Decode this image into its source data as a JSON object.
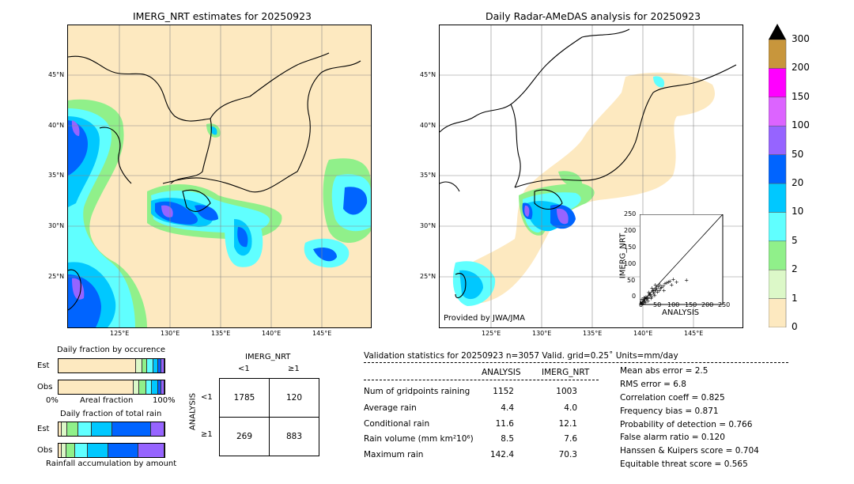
{
  "left_map": {
    "title": "IMERG_NRT estimates for 20250923",
    "lat_labels": [
      "45°N",
      "40°N",
      "35°N",
      "30°N",
      "25°N"
    ],
    "lon_labels": [
      "125°E",
      "130°E",
      "135°E",
      "140°E",
      "145°E"
    ]
  },
  "right_map": {
    "title": "Daily Radar-AMeDAS analysis for 20250923",
    "lat_labels": [
      "45°N",
      "40°N",
      "35°N",
      "30°N",
      "25°N"
    ],
    "lon_labels": [
      "125°E",
      "130°E",
      "135°E",
      "140°E",
      "145°E"
    ],
    "credit": "Provided by JWA/JMA"
  },
  "colorbar": {
    "levels": [
      "0",
      "1",
      "2",
      "5",
      "10",
      "20",
      "50",
      "100",
      "150",
      "200",
      "300"
    ],
    "colors": [
      "#fde9c0",
      "#dcf8c8",
      "#90f08a",
      "#60ffff",
      "#00c8ff",
      "#0064ff",
      "#9664ff",
      "#dc64ff",
      "#ff00ff",
      "#c8963c"
    ],
    "extend_color": "#000000"
  },
  "occurrence": {
    "title": "Daily fraction by occurence",
    "est_label": "Est",
    "obs_label": "Obs",
    "xlabel": "Areal fraction",
    "left_tick": "0%",
    "right_tick": "100%",
    "est_fractions": [
      0.76,
      0.06,
      0.04,
      0.05,
      0.04,
      0.03,
      0.02
    ],
    "obs_fractions": [
      0.74,
      0.05,
      0.06,
      0.05,
      0.05,
      0.03,
      0.02
    ]
  },
  "total_rain": {
    "title": "Daily fraction of total rain",
    "est_label": "Est",
    "obs_label": "Obs",
    "xlabel": "Rainfall accumulation by amount",
    "est_fractions": [
      0.02,
      0.05,
      0.1,
      0.13,
      0.2,
      0.37,
      0.13
    ],
    "obs_fractions": [
      0.02,
      0.04,
      0.08,
      0.12,
      0.2,
      0.29,
      0.25
    ]
  },
  "contingency": {
    "col_title": "IMERG_NRT",
    "col_lt": "<1",
    "col_ge": "≥1",
    "row_title": "ANALYSIS",
    "row_lt": "<1",
    "row_ge": "≥1",
    "a": "1785",
    "b": "120",
    "c": "269",
    "d": "883"
  },
  "validation": {
    "header": "Validation statistics for 20250923  n=3057 Valid. grid=0.25˚ Units=mm/day",
    "col_analysis": "ANALYSIS",
    "col_imerg": "IMERG_NRT",
    "rows": [
      {
        "label": "Num of gridpoints raining",
        "analysis": "1152",
        "imerg": "1003"
      },
      {
        "label": "Average rain",
        "analysis": "4.4",
        "imerg": "4.0"
      },
      {
        "label": "Conditional rain",
        "analysis": "11.6",
        "imerg": "12.1"
      },
      {
        "label": "Rain volume (mm km²10⁶)",
        "analysis": "8.5",
        "imerg": "7.6"
      },
      {
        "label": "Maximum rain",
        "analysis": "142.4",
        "imerg": "70.3"
      }
    ],
    "scores": [
      "Mean abs error =    2.5",
      "RMS error =    6.8",
      "Correlation coeff =  0.825",
      "Frequency bias =  0.871",
      "Probability of detection =  0.766",
      "False alarm ratio =  0.120",
      "Hanssen & Kuipers score =  0.704",
      "Equitable threat score =  0.565"
    ]
  },
  "chart_data": {
    "type": "scatter",
    "xlabel": "ANALYSIS",
    "ylabel": "IMERG_NRT",
    "xlim": [
      0,
      250
    ],
    "ylim": [
      0,
      250
    ],
    "ticks": [
      "0",
      "50",
      "100",
      "150",
      "200",
      "250"
    ],
    "points": [
      [
        2,
        1
      ],
      [
        5,
        3
      ],
      [
        8,
        6
      ],
      [
        10,
        12
      ],
      [
        12,
        8
      ],
      [
        15,
        10
      ],
      [
        18,
        22
      ],
      [
        20,
        14
      ],
      [
        22,
        18
      ],
      [
        25,
        20
      ],
      [
        28,
        30
      ],
      [
        30,
        25
      ],
      [
        32,
        28
      ],
      [
        35,
        22
      ],
      [
        38,
        40
      ],
      [
        40,
        35
      ],
      [
        42,
        30
      ],
      [
        45,
        38
      ],
      [
        48,
        42
      ],
      [
        50,
        45
      ],
      [
        55,
        50
      ],
      [
        58,
        40
      ],
      [
        60,
        55
      ],
      [
        65,
        48
      ],
      [
        70,
        52
      ],
      [
        75,
        58
      ],
      [
        80,
        60
      ],
      [
        85,
        62
      ],
      [
        90,
        65
      ],
      [
        100,
        70
      ],
      [
        110,
        62
      ],
      [
        140,
        68
      ],
      [
        6,
        15
      ],
      [
        12,
        20
      ],
      [
        16,
        5
      ],
      [
        24,
        10
      ],
      [
        33,
        18
      ],
      [
        44,
        25
      ],
      [
        52,
        35
      ],
      [
        3,
        8
      ],
      [
        9,
        2
      ],
      [
        14,
        16
      ],
      [
        26,
        34
      ],
      [
        36,
        46
      ],
      [
        46,
        55
      ],
      [
        62,
        45
      ],
      [
        72,
        40
      ],
      [
        95,
        55
      ]
    ]
  }
}
